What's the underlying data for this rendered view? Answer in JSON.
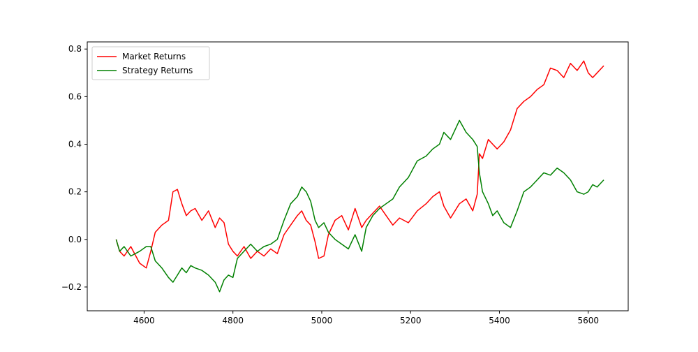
{
  "chart_data": {
    "type": "line",
    "title": "",
    "xlabel": "",
    "ylabel": "",
    "xlim": [
      4472,
      5690
    ],
    "ylim": [
      -0.3,
      0.83
    ],
    "grid": false,
    "legend_position": "top-left",
    "x_ticks": [
      4600,
      4800,
      5000,
      5200,
      5400,
      5600
    ],
    "y_ticks": [
      -0.2,
      0.0,
      0.2,
      0.4,
      0.6,
      0.8
    ],
    "x_tick_labels": [
      "4600",
      "4800",
      "5000",
      "5200",
      "5400",
      "5600"
    ],
    "y_tick_labels": [
      "−0.2",
      "0.0",
      "0.2",
      "0.4",
      "0.6",
      "0.8"
    ],
    "series": [
      {
        "name": "Market Returns",
        "color": "#ff0000",
        "x": [
          4537,
          4545,
          4555,
          4570,
          4590,
          4605,
          4615,
          4625,
          4640,
          4655,
          4665,
          4675,
          4685,
          4695,
          4705,
          4715,
          4730,
          4745,
          4760,
          4770,
          4780,
          4790,
          4800,
          4810,
          4825,
          4840,
          4855,
          4870,
          4885,
          4900,
          4915,
          4930,
          4945,
          4955,
          4965,
          4975,
          4985,
          4993,
          5005,
          5015,
          5030,
          5045,
          5060,
          5075,
          5090,
          5100,
          5115,
          5130,
          5145,
          5160,
          5175,
          5195,
          5215,
          5235,
          5250,
          5265,
          5275,
          5290,
          5310,
          5325,
          5340,
          5350,
          5355,
          5362,
          5375,
          5385,
          5395,
          5410,
          5425,
          5440,
          5455,
          5470,
          5485,
          5500,
          5515,
          5530,
          5545,
          5560,
          5575,
          5590,
          5600,
          5610,
          5620,
          5635
        ],
        "values": [
          0.0,
          -0.05,
          -0.07,
          -0.03,
          -0.1,
          -0.12,
          -0.05,
          0.03,
          0.06,
          0.08,
          0.2,
          0.21,
          0.15,
          0.1,
          0.12,
          0.13,
          0.08,
          0.12,
          0.05,
          0.09,
          0.07,
          -0.02,
          -0.05,
          -0.07,
          -0.03,
          -0.08,
          -0.05,
          -0.07,
          -0.04,
          -0.06,
          0.02,
          0.06,
          0.1,
          0.12,
          0.08,
          0.06,
          -0.01,
          -0.08,
          -0.07,
          0.02,
          0.08,
          0.1,
          0.04,
          0.13,
          0.05,
          0.08,
          0.11,
          0.14,
          0.1,
          0.06,
          0.09,
          0.07,
          0.12,
          0.15,
          0.18,
          0.2,
          0.14,
          0.09,
          0.15,
          0.17,
          0.12,
          0.19,
          0.36,
          0.34,
          0.42,
          0.4,
          0.38,
          0.41,
          0.46,
          0.55,
          0.58,
          0.6,
          0.63,
          0.65,
          0.72,
          0.71,
          0.68,
          0.74,
          0.71,
          0.75,
          0.7,
          0.68,
          0.7,
          0.73
        ]
      },
      {
        "name": "Strategy Returns",
        "color": "#008000",
        "x": [
          4537,
          4545,
          4555,
          4570,
          4590,
          4605,
          4615,
          4625,
          4640,
          4655,
          4665,
          4675,
          4685,
          4695,
          4705,
          4715,
          4730,
          4745,
          4760,
          4770,
          4780,
          4790,
          4800,
          4810,
          4825,
          4840,
          4855,
          4870,
          4885,
          4900,
          4915,
          4930,
          4945,
          4955,
          4965,
          4975,
          4985,
          4993,
          5005,
          5015,
          5030,
          5045,
          5060,
          5075,
          5090,
          5100,
          5115,
          5130,
          5145,
          5160,
          5175,
          5195,
          5215,
          5235,
          5250,
          5265,
          5275,
          5290,
          5310,
          5325,
          5340,
          5350,
          5355,
          5362,
          5375,
          5385,
          5395,
          5410,
          5425,
          5440,
          5455,
          5470,
          5485,
          5500,
          5515,
          5530,
          5545,
          5560,
          5575,
          5590,
          5600,
          5610,
          5620,
          5635
        ],
        "values": [
          0.0,
          -0.05,
          -0.03,
          -0.07,
          -0.05,
          -0.03,
          -0.03,
          -0.09,
          -0.12,
          -0.16,
          -0.18,
          -0.15,
          -0.12,
          -0.14,
          -0.11,
          -0.12,
          -0.13,
          -0.15,
          -0.18,
          -0.22,
          -0.17,
          -0.15,
          -0.16,
          -0.08,
          -0.05,
          -0.02,
          -0.05,
          -0.03,
          -0.02,
          0.0,
          0.08,
          0.15,
          0.18,
          0.22,
          0.2,
          0.16,
          0.08,
          0.05,
          0.07,
          0.03,
          0.0,
          -0.02,
          -0.04,
          0.02,
          -0.05,
          0.05,
          0.1,
          0.13,
          0.15,
          0.17,
          0.22,
          0.26,
          0.33,
          0.35,
          0.38,
          0.4,
          0.45,
          0.42,
          0.5,
          0.45,
          0.42,
          0.39,
          0.28,
          0.2,
          0.15,
          0.1,
          0.12,
          0.07,
          0.05,
          0.12,
          0.2,
          0.22,
          0.25,
          0.28,
          0.27,
          0.3,
          0.28,
          0.25,
          0.2,
          0.19,
          0.2,
          0.23,
          0.22,
          0.25
        ]
      }
    ]
  }
}
